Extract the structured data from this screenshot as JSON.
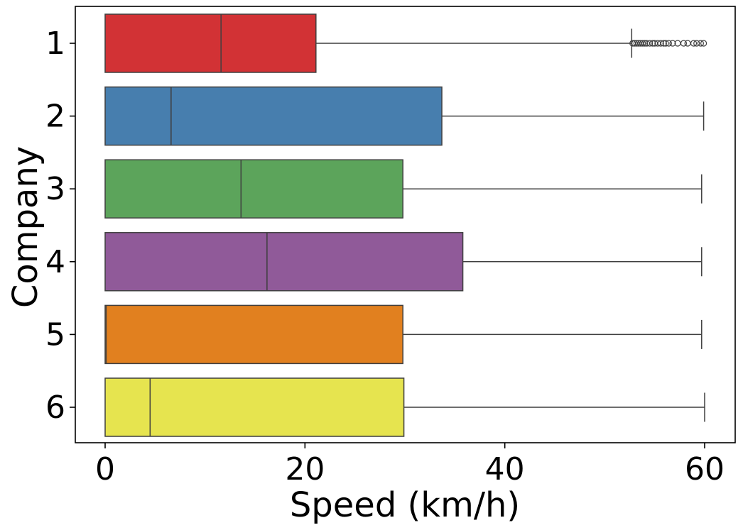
{
  "chart_data": {
    "type": "boxplot",
    "orientation": "horizontal",
    "xlabel": "Speed (km/h)",
    "ylabel": "Company",
    "xlim": [
      -3,
      63
    ],
    "x_ticks": [
      0,
      20,
      40,
      60
    ],
    "x_tick_labels": [
      "0",
      "20",
      "40",
      "60"
    ],
    "categories": [
      "1",
      "2",
      "3",
      "4",
      "5",
      "6"
    ],
    "grid": false,
    "series": [
      {
        "category": "1",
        "color": "#d23235",
        "whisker_low": 0,
        "q1": 0,
        "median": 11.6,
        "q3": 21.1,
        "whisker_high": 52.7,
        "outliers": [
          52.8,
          53.0,
          53.2,
          53.4,
          53.6,
          53.8,
          54.0,
          54.2,
          54.5,
          54.8,
          55.0,
          55.3,
          55.6,
          55.9,
          56.1,
          56.4,
          56.8,
          57.3,
          57.9,
          58.3,
          58.9,
          59.2,
          59.6,
          59.9
        ]
      },
      {
        "category": "2",
        "color": "#477eae",
        "whisker_low": 0,
        "q1": 0,
        "median": 6.6,
        "q3": 33.7,
        "whisker_high": 59.9,
        "outliers": []
      },
      {
        "category": "3",
        "color": "#5ca45b",
        "whisker_low": 0,
        "q1": 0,
        "median": 13.6,
        "q3": 29.8,
        "whisker_high": 59.7,
        "outliers": []
      },
      {
        "category": "4",
        "color": "#905a99",
        "whisker_low": 0,
        "q1": 0,
        "median": 16.2,
        "q3": 35.8,
        "whisker_high": 59.7,
        "outliers": []
      },
      {
        "category": "5",
        "color": "#e1801f",
        "whisker_low": 0,
        "q1": 0,
        "median": 0.1,
        "q3": 29.8,
        "whisker_high": 59.7,
        "outliers": []
      },
      {
        "category": "6",
        "color": "#e6e44f",
        "whisker_low": 0,
        "q1": 0,
        "median": 4.5,
        "q3": 29.9,
        "whisker_high": 60.0,
        "outliers": []
      }
    ]
  }
}
